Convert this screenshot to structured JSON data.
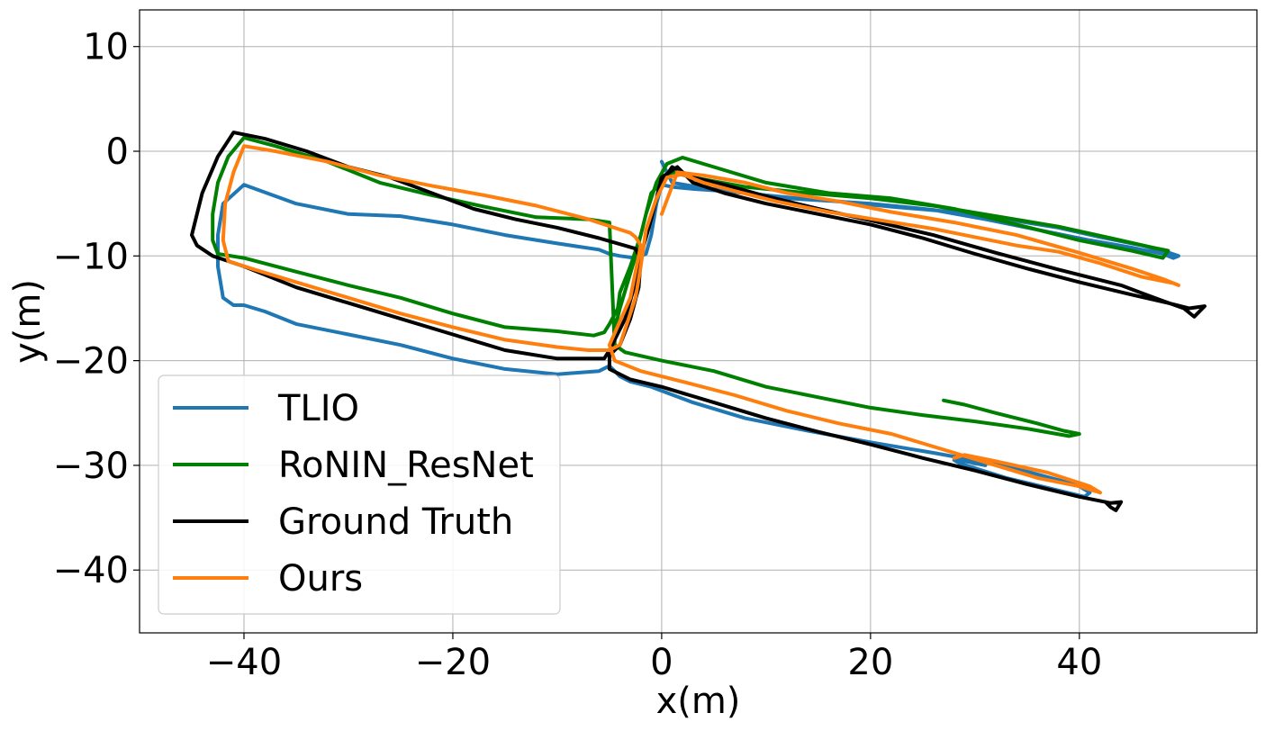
{
  "chart_data": {
    "type": "line",
    "title": "",
    "xlabel": "x(m)",
    "ylabel": "y(m)",
    "xlim": [
      -50,
      57
    ],
    "ylim": [
      -46,
      13.5
    ],
    "xticks": [
      -40,
      -20,
      0,
      20,
      40
    ],
    "xtick_labels": [
      "−40",
      "−20",
      "0",
      "20",
      "40"
    ],
    "yticks": [
      10,
      0,
      -10,
      -20,
      -30,
      -40
    ],
    "ytick_labels": [
      "10",
      "0",
      "−10",
      "−20",
      "−30",
      "−40"
    ],
    "grid": true,
    "legend_position": "lower-left",
    "series": [
      {
        "name": "TLIO",
        "color": "#1f77b4",
        "x": [
          0.0,
          1.0,
          4.0,
          8.0,
          12.0,
          17.0,
          22.0,
          28.0,
          33.0,
          38.0,
          42.0,
          46.0,
          48.0,
          49.5,
          49.0,
          48.0,
          45.0,
          41.0,
          36.0,
          31.0,
          26.0,
          20.0,
          14.0,
          10.0,
          6.0,
          3.0,
          1.0,
          0.0,
          -0.5,
          -1.0,
          -1.5,
          -2.5,
          -4.0,
          -5.0,
          -6.0,
          -10.0,
          -15.0,
          -20.0,
          -25.0,
          -30.0,
          -35.0,
          -40.0,
          -42.0,
          -42.5,
          -42.5,
          -42.0,
          -41.0,
          -40.0,
          -38.0,
          -35.0,
          -30.0,
          -25.0,
          -20.0,
          -15.0,
          -10.0,
          -6.0,
          -5.0,
          -4.0,
          -3.0,
          -1.0,
          3.0,
          8.0,
          14.0,
          20.0,
          26.0,
          31.0,
          35.0,
          38.0,
          40.0,
          41.0,
          40.5,
          38.0,
          33.0,
          28.5,
          28.0,
          29.0,
          31.0
        ],
        "y": [
          -1.0,
          -3.0,
          -3.5,
          -4.0,
          -4.5,
          -4.8,
          -5.3,
          -5.8,
          -6.5,
          -7.3,
          -8.2,
          -9.0,
          -9.5,
          -10.0,
          -10.2,
          -9.8,
          -9.2,
          -8.5,
          -7.5,
          -6.5,
          -5.6,
          -5.0,
          -4.6,
          -4.2,
          -3.8,
          -3.6,
          -3.4,
          -3.2,
          -5.0,
          -8.0,
          -9.8,
          -10.2,
          -10.0,
          -9.8,
          -9.4,
          -8.8,
          -8.0,
          -7.0,
          -6.2,
          -6.0,
          -5.0,
          -3.2,
          -5.0,
          -8.0,
          -11.0,
          -14.0,
          -14.7,
          -14.7,
          -15.3,
          -16.5,
          -17.5,
          -18.5,
          -19.8,
          -20.8,
          -21.3,
          -21.0,
          -20.5,
          -21.5,
          -22.0,
          -22.5,
          -24.0,
          -25.5,
          -26.7,
          -27.8,
          -28.8,
          -29.7,
          -30.6,
          -31.4,
          -32.0,
          -32.6,
          -33.0,
          -32.4,
          -31.2,
          -29.8,
          -29.5,
          -29.6,
          -30.0
        ]
      },
      {
        "name": "RoNIN_ResNet",
        "color": "#008000",
        "x": [
          -4.5,
          -4.5,
          -4.0,
          -2.5,
          -1.5,
          -0.5,
          0.5,
          2.0,
          5.0,
          10.0,
          16.0,
          22.0,
          28.0,
          34.0,
          40.0,
          45.0,
          48.0,
          48.5,
          47.0,
          43.0,
          38.0,
          32.0,
          26.0,
          20.0,
          14.0,
          8.0,
          3.0,
          1.0,
          -1.0,
          -2.0,
          -3.0,
          -4.0,
          -4.2,
          -5.0,
          -5.5,
          -6.5,
          -10.0,
          -15.0,
          -20.0,
          -25.0,
          -30.0,
          -35.0,
          -40.0,
          -42.5,
          -43.0,
          -43.0,
          -42.5,
          -41.5,
          -40.0,
          -37.0,
          -32.0,
          -27.0,
          -22.0,
          -17.0,
          -12.0,
          -7.0,
          -5.0,
          -4.5,
          -3.5,
          0.0,
          5.0,
          10.0,
          15.0,
          20.0,
          25.0,
          30.0,
          35.0,
          39.0,
          40.0,
          38.5,
          36.0,
          32.0,
          29.0,
          27.0
        ],
        "y": [
          -18.5,
          -17.0,
          -15.0,
          -10.0,
          -6.0,
          -3.0,
          -1.2,
          -0.6,
          -1.5,
          -3.0,
          -4.0,
          -4.5,
          -5.5,
          -7.0,
          -8.5,
          -9.5,
          -10.2,
          -9.5,
          -9.2,
          -8.3,
          -7.2,
          -6.2,
          -5.2,
          -4.5,
          -4.0,
          -3.4,
          -2.5,
          -2.0,
          -4.0,
          -8.0,
          -11.0,
          -13.5,
          -15.0,
          -16.5,
          -17.3,
          -17.6,
          -17.2,
          -16.8,
          -15.5,
          -14.0,
          -12.8,
          -11.5,
          -10.2,
          -9.8,
          -8.5,
          -6.0,
          -3.0,
          -0.5,
          1.3,
          0.5,
          -1.0,
          -3.0,
          -4.2,
          -5.3,
          -6.3,
          -6.5,
          -6.8,
          -18.5,
          -19.2,
          -20.0,
          -21.0,
          -22.5,
          -23.5,
          -24.5,
          -25.2,
          -25.8,
          -26.5,
          -27.2,
          -27.0,
          -26.7,
          -26.0,
          -25.0,
          -24.2,
          -23.8
        ]
      },
      {
        "name": "Ground Truth",
        "color": "#000000",
        "x": [
          0.0,
          1.0,
          3.0,
          6.0,
          10.0,
          15.0,
          20.0,
          26.0,
          32.0,
          38.0,
          44.0,
          48.0,
          50.0,
          51.0,
          52.0,
          50.5,
          48.5,
          45.0,
          40.0,
          35.0,
          30.0,
          25.0,
          20.0,
          15.0,
          10.0,
          6.0,
          3.0,
          1.5,
          0.0,
          -1.0,
          -2.0,
          -2.5,
          -3.5,
          -5.0,
          -5.5,
          -6.0,
          -10.0,
          -15.0,
          -20.0,
          -25.0,
          -30.0,
          -35.0,
          -40.0,
          -43.0,
          -44.5,
          -45.0,
          -44.0,
          -42.5,
          -41.0,
          -38.0,
          -34.0,
          -30.0,
          -26.0,
          -22.0,
          -18.0,
          -14.0,
          -10.0,
          -6.0,
          -2.5,
          -2.0,
          -2.2,
          -3.0,
          -4.0,
          -5.0,
          -5.0,
          -3.0,
          0.0,
          5.0,
          10.0,
          15.0,
          20.0,
          25.0,
          30.0,
          35.0,
          40.0,
          43.0,
          44.0,
          43.5,
          43.0,
          42.5
        ],
        "y": [
          -3.0,
          -1.5,
          -2.5,
          -3.2,
          -4.3,
          -5.5,
          -6.6,
          -8.0,
          -9.7,
          -11.3,
          -12.8,
          -14.3,
          -15.0,
          -15.8,
          -14.8,
          -15.0,
          -14.5,
          -13.7,
          -12.5,
          -11.2,
          -9.8,
          -8.3,
          -7.0,
          -6.0,
          -5.0,
          -4.0,
          -3.0,
          -1.5,
          -2.5,
          -6.5,
          -10.0,
          -12.5,
          -16.0,
          -19.0,
          -19.8,
          -19.8,
          -19.8,
          -19.0,
          -17.5,
          -16.0,
          -14.5,
          -13.0,
          -11.0,
          -10.0,
          -9.0,
          -8.0,
          -4.0,
          -0.5,
          1.8,
          1.2,
          0.0,
          -1.5,
          -2.5,
          -4.0,
          -5.5,
          -6.5,
          -7.3,
          -8.3,
          -9.3,
          -10.3,
          -13.0,
          -16.0,
          -18.5,
          -19.5,
          -20.8,
          -21.8,
          -22.5,
          -24.0,
          -25.5,
          -26.8,
          -28.0,
          -29.3,
          -30.5,
          -31.8,
          -33.0,
          -33.6,
          -33.5,
          -34.3,
          -34.0,
          -33.5
        ]
      },
      {
        "name": "Ours",
        "color": "#ff7f0e",
        "x": [
          0.0,
          1.5,
          4.0,
          8.0,
          12.0,
          17.0,
          22.0,
          28.0,
          34.0,
          40.0,
          45.0,
          48.0,
          49.5,
          49.0,
          46.0,
          42.0,
          38.0,
          34.0,
          30.0,
          26.0,
          21.0,
          16.0,
          11.0,
          7.0,
          4.0,
          2.0,
          0.5,
          -0.5,
          -1.5,
          -2.0,
          -2.5,
          -3.5,
          -4.0,
          -5.0,
          -7.0,
          -10.0,
          -15.0,
          -20.0,
          -25.0,
          -30.0,
          -35.0,
          -39.0,
          -41.5,
          -42.0,
          -41.8,
          -41.0,
          -40.0,
          -37.0,
          -32.0,
          -27.0,
          -22.0,
          -17.0,
          -12.0,
          -7.0,
          -3.0,
          -2.5,
          -2.0,
          -3.0,
          -5.0,
          -4.5,
          -2.0,
          2.0,
          7.0,
          12.0,
          17.0,
          22.0,
          27.0,
          32.0,
          36.0,
          40.0,
          42.0,
          41.0,
          37.0,
          32.0,
          29.0,
          28.0
        ],
        "y": [
          -6.0,
          -2.0,
          -2.3,
          -3.0,
          -4.0,
          -4.8,
          -5.8,
          -6.8,
          -8.0,
          -9.7,
          -11.2,
          -12.2,
          -12.8,
          -12.6,
          -12.0,
          -10.7,
          -9.6,
          -9.0,
          -8.2,
          -7.4,
          -6.6,
          -5.8,
          -4.8,
          -3.8,
          -3.0,
          -2.2,
          -2.5,
          -4.5,
          -7.5,
          -11.0,
          -14.0,
          -17.0,
          -18.5,
          -19.0,
          -19.0,
          -18.7,
          -18.0,
          -16.8,
          -15.5,
          -14.0,
          -12.5,
          -11.3,
          -10.5,
          -8.5,
          -5.0,
          -2.0,
          0.5,
          0.0,
          -1.0,
          -2.3,
          -3.3,
          -4.2,
          -5.2,
          -6.5,
          -7.8,
          -8.2,
          -9.0,
          -14.0,
          -18.5,
          -20.0,
          -21.0,
          -22.0,
          -23.3,
          -24.8,
          -26.0,
          -27.0,
          -28.5,
          -30.0,
          -31.2,
          -32.0,
          -32.6,
          -32.0,
          -30.7,
          -29.6,
          -29.0,
          -29.3
        ]
      }
    ]
  }
}
